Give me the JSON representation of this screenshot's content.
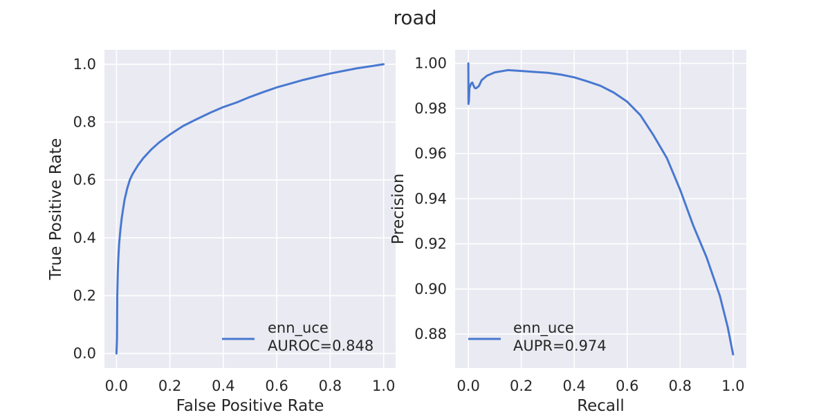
{
  "figure": {
    "title": "road"
  },
  "chart_data": [
    {
      "type": "line",
      "xlabel": "False Positive Rate",
      "ylabel": "True Positive Rate",
      "xlim": [
        -0.045,
        1.045
      ],
      "ylim": [
        -0.05,
        1.05
      ],
      "xticks": [
        "0.0",
        "0.2",
        "0.4",
        "0.6",
        "0.8",
        "1.0"
      ],
      "yticks": [
        "0.0",
        "0.2",
        "0.4",
        "0.6",
        "0.8",
        "1.0"
      ],
      "grid": true,
      "legend_position": "lower-right",
      "series": [
        {
          "name": "enn_uce",
          "metric": "AUROC=0.848",
          "color": "#4878d0",
          "points": [
            [
              0.0,
              0.0
            ],
            [
              0.002,
              0.05
            ],
            [
              0.003,
              0.2
            ],
            [
              0.005,
              0.28
            ],
            [
              0.007,
              0.33
            ],
            [
              0.01,
              0.38
            ],
            [
              0.015,
              0.43
            ],
            [
              0.02,
              0.47
            ],
            [
              0.03,
              0.53
            ],
            [
              0.04,
              0.57
            ],
            [
              0.05,
              0.6
            ],
            [
              0.06,
              0.62
            ],
            [
              0.08,
              0.65
            ],
            [
              0.1,
              0.675
            ],
            [
              0.13,
              0.705
            ],
            [
              0.16,
              0.73
            ],
            [
              0.2,
              0.757
            ],
            [
              0.25,
              0.787
            ],
            [
              0.3,
              0.81
            ],
            [
              0.35,
              0.832
            ],
            [
              0.4,
              0.852
            ],
            [
              0.45,
              0.868
            ],
            [
              0.5,
              0.887
            ],
            [
              0.55,
              0.904
            ],
            [
              0.6,
              0.92
            ],
            [
              0.65,
              0.933
            ],
            [
              0.7,
              0.946
            ],
            [
              0.75,
              0.957
            ],
            [
              0.8,
              0.968
            ],
            [
              0.85,
              0.977
            ],
            [
              0.9,
              0.986
            ],
            [
              0.95,
              0.993
            ],
            [
              1.0,
              1.0
            ]
          ]
        }
      ]
    },
    {
      "type": "line",
      "xlabel": "Recall",
      "ylabel": "Precision",
      "xlim": [
        -0.05,
        1.05
      ],
      "ylim": [
        0.865,
        1.006
      ],
      "xticks": [
        "0.0",
        "0.2",
        "0.4",
        "0.6",
        "0.8",
        "1.0"
      ],
      "yticks": [
        "0.88",
        "0.90",
        "0.92",
        "0.94",
        "0.96",
        "0.98",
        "1.00"
      ],
      "grid": true,
      "legend_position": "lower-left",
      "series": [
        {
          "name": "enn_uce",
          "metric": "AUPR=0.974",
          "color": "#4878d0",
          "points": [
            [
              0.0,
              1.0
            ],
            [
              0.0005,
              0.982
            ],
            [
              0.001,
              0.988
            ],
            [
              0.002,
              0.983
            ],
            [
              0.004,
              0.989
            ],
            [
              0.007,
              0.99
            ],
            [
              0.01,
              0.991
            ],
            [
              0.015,
              0.9915
            ],
            [
              0.02,
              0.99
            ],
            [
              0.025,
              0.989
            ],
            [
              0.03,
              0.989
            ],
            [
              0.04,
              0.99
            ],
            [
              0.05,
              0.9925
            ],
            [
              0.07,
              0.9945
            ],
            [
              0.1,
              0.996
            ],
            [
              0.13,
              0.9966
            ],
            [
              0.15,
              0.997
            ],
            [
              0.2,
              0.9966
            ],
            [
              0.25,
              0.9962
            ],
            [
              0.3,
              0.9958
            ],
            [
              0.35,
              0.995
            ],
            [
              0.4,
              0.9938
            ],
            [
              0.45,
              0.992
            ],
            [
              0.5,
              0.99
            ],
            [
              0.55,
              0.987
            ],
            [
              0.6,
              0.983
            ],
            [
              0.65,
              0.977
            ],
            [
              0.7,
              0.968
            ],
            [
              0.75,
              0.958
            ],
            [
              0.8,
              0.944
            ],
            [
              0.85,
              0.928
            ],
            [
              0.9,
              0.914
            ],
            [
              0.95,
              0.897
            ],
            [
              0.98,
              0.883
            ],
            [
              1.0,
              0.871
            ]
          ]
        }
      ]
    }
  ]
}
